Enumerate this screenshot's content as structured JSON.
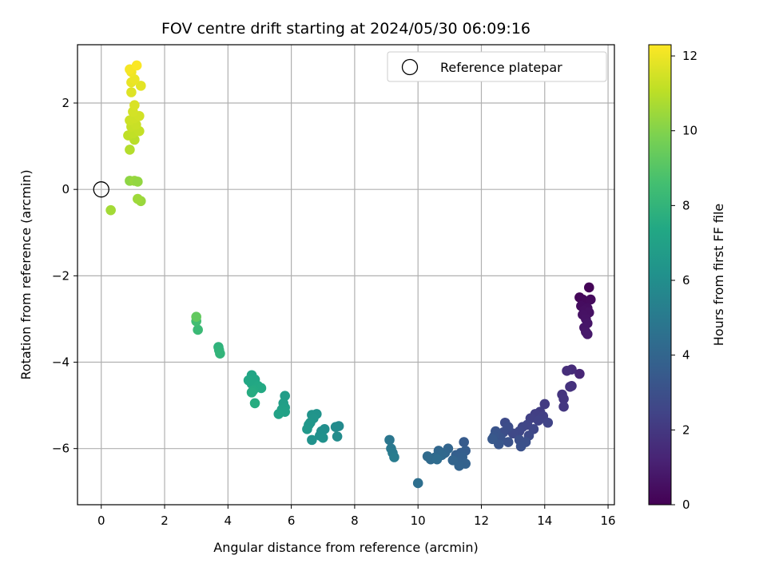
{
  "chart_data": {
    "type": "scatter",
    "title": "FOV centre drift starting at 2024/05/30 06:09:16",
    "xlabel": "Angular distance from reference (arcmin)",
    "ylabel": "Rotation from reference (arcmin)",
    "xlim": [
      -0.75,
      16.2
    ],
    "ylim": [
      -7.3,
      3.35
    ],
    "xticks": [
      0,
      2,
      4,
      6,
      8,
      10,
      12,
      14,
      16
    ],
    "xtick_labels": [
      "0",
      "2",
      "4",
      "6",
      "8",
      "10",
      "12",
      "14",
      "16"
    ],
    "yticks": [
      2,
      0,
      -2,
      -4,
      -6
    ],
    "ytick_labels": [
      "2",
      "0",
      "−2",
      "−4",
      "−6"
    ],
    "grid": true,
    "colormap": "viridis",
    "colorbar": {
      "label": "Hours from first FF file",
      "range": [
        0,
        12.3
      ],
      "ticks": [
        0,
        2,
        4,
        6,
        8,
        10,
        12
      ],
      "tick_labels": [
        "0",
        "2",
        "4",
        "6",
        "8",
        "10",
        "12"
      ]
    },
    "legend": {
      "position": "top-right",
      "entries": [
        {
          "label": "Reference platepar",
          "marker": "open-circle"
        }
      ]
    },
    "reference_point": {
      "x": 0,
      "y": 0
    },
    "points": [
      {
        "x": 15.4,
        "y": -2.27,
        "c": 0.1
      },
      {
        "x": 15.1,
        "y": -2.5,
        "c": 0.2
      },
      {
        "x": 15.2,
        "y": -2.55,
        "c": 0.25
      },
      {
        "x": 15.3,
        "y": -2.6,
        "c": 0.3
      },
      {
        "x": 15.45,
        "y": -2.55,
        "c": 0.35
      },
      {
        "x": 15.15,
        "y": -2.7,
        "c": 0.4
      },
      {
        "x": 15.35,
        "y": -2.75,
        "c": 0.45
      },
      {
        "x": 15.25,
        "y": -2.8,
        "c": 0.5
      },
      {
        "x": 15.4,
        "y": -2.85,
        "c": 0.55
      },
      {
        "x": 15.2,
        "y": -2.9,
        "c": 0.6
      },
      {
        "x": 15.3,
        "y": -3.0,
        "c": 0.65
      },
      {
        "x": 15.35,
        "y": -3.1,
        "c": 0.7
      },
      {
        "x": 15.25,
        "y": -3.2,
        "c": 0.75
      },
      {
        "x": 15.3,
        "y": -3.3,
        "c": 0.8
      },
      {
        "x": 15.35,
        "y": -3.35,
        "c": 0.85
      },
      {
        "x": 15.1,
        "y": -4.27,
        "c": 1.3
      },
      {
        "x": 14.85,
        "y": -4.17,
        "c": 1.5
      },
      {
        "x": 14.7,
        "y": -4.2,
        "c": 1.6
      },
      {
        "x": 14.85,
        "y": -4.55,
        "c": 1.7
      },
      {
        "x": 14.8,
        "y": -4.57,
        "c": 1.75
      },
      {
        "x": 14.55,
        "y": -4.75,
        "c": 1.85
      },
      {
        "x": 14.6,
        "y": -4.85,
        "c": 1.9
      },
      {
        "x": 14.6,
        "y": -5.03,
        "c": 1.95
      },
      {
        "x": 14.0,
        "y": -4.97,
        "c": 2.1
      },
      {
        "x": 13.85,
        "y": -5.15,
        "c": 2.2
      },
      {
        "x": 13.7,
        "y": -5.2,
        "c": 2.25
      },
      {
        "x": 13.95,
        "y": -5.25,
        "c": 2.3
      },
      {
        "x": 13.55,
        "y": -5.3,
        "c": 2.35
      },
      {
        "x": 13.8,
        "y": -5.35,
        "c": 2.4
      },
      {
        "x": 14.1,
        "y": -5.4,
        "c": 2.45
      },
      {
        "x": 13.45,
        "y": -5.45,
        "c": 2.5
      },
      {
        "x": 13.3,
        "y": -5.5,
        "c": 2.55
      },
      {
        "x": 13.65,
        "y": -5.55,
        "c": 2.6
      },
      {
        "x": 13.2,
        "y": -5.6,
        "c": 2.65
      },
      {
        "x": 13.0,
        "y": -5.65,
        "c": 2.7
      },
      {
        "x": 13.5,
        "y": -5.7,
        "c": 2.75
      },
      {
        "x": 12.75,
        "y": -5.4,
        "c": 2.8
      },
      {
        "x": 12.85,
        "y": -5.5,
        "c": 2.85
      },
      {
        "x": 12.7,
        "y": -5.62,
        "c": 2.9
      },
      {
        "x": 13.2,
        "y": -5.8,
        "c": 2.95
      },
      {
        "x": 13.4,
        "y": -5.85,
        "c": 3.0
      },
      {
        "x": 13.25,
        "y": -5.95,
        "c": 3.05
      },
      {
        "x": 12.85,
        "y": -5.85,
        "c": 3.1
      },
      {
        "x": 12.6,
        "y": -5.75,
        "c": 3.15
      },
      {
        "x": 12.45,
        "y": -5.6,
        "c": 3.2
      },
      {
        "x": 12.4,
        "y": -5.72,
        "c": 3.25
      },
      {
        "x": 12.55,
        "y": -5.9,
        "c": 3.3
      },
      {
        "x": 12.35,
        "y": -5.78,
        "c": 3.35
      },
      {
        "x": 11.45,
        "y": -5.85,
        "c": 3.5
      },
      {
        "x": 11.5,
        "y": -6.05,
        "c": 3.6
      },
      {
        "x": 11.35,
        "y": -6.1,
        "c": 3.65
      },
      {
        "x": 11.2,
        "y": -6.15,
        "c": 3.7
      },
      {
        "x": 11.4,
        "y": -6.2,
        "c": 3.75
      },
      {
        "x": 11.25,
        "y": -6.3,
        "c": 3.8
      },
      {
        "x": 11.5,
        "y": -6.35,
        "c": 3.85
      },
      {
        "x": 11.3,
        "y": -6.4,
        "c": 3.9
      },
      {
        "x": 11.1,
        "y": -6.27,
        "c": 3.95
      },
      {
        "x": 10.95,
        "y": -6.0,
        "c": 4.0
      },
      {
        "x": 10.85,
        "y": -6.1,
        "c": 4.05
      },
      {
        "x": 10.65,
        "y": -6.05,
        "c": 4.1
      },
      {
        "x": 10.75,
        "y": -6.15,
        "c": 4.15
      },
      {
        "x": 10.55,
        "y": -6.2,
        "c": 4.2
      },
      {
        "x": 10.4,
        "y": -6.25,
        "c": 4.25
      },
      {
        "x": 10.3,
        "y": -6.18,
        "c": 4.3
      },
      {
        "x": 10.6,
        "y": -6.25,
        "c": 4.35
      },
      {
        "x": 10.0,
        "y": -6.8,
        "c": 4.5
      },
      {
        "x": 9.1,
        "y": -5.8,
        "c": 4.8
      },
      {
        "x": 9.15,
        "y": -6.0,
        "c": 4.9
      },
      {
        "x": 9.2,
        "y": -6.1,
        "c": 5.0
      },
      {
        "x": 9.25,
        "y": -6.2,
        "c": 5.1
      },
      {
        "x": 7.5,
        "y": -5.48,
        "c": 5.8
      },
      {
        "x": 7.4,
        "y": -5.5,
        "c": 5.85
      },
      {
        "x": 7.45,
        "y": -5.72,
        "c": 5.9
      },
      {
        "x": 7.05,
        "y": -5.55,
        "c": 6.0
      },
      {
        "x": 6.95,
        "y": -5.6,
        "c": 6.05
      },
      {
        "x": 6.9,
        "y": -5.7,
        "c": 6.1
      },
      {
        "x": 7.0,
        "y": -5.75,
        "c": 6.15
      },
      {
        "x": 6.65,
        "y": -5.8,
        "c": 6.2
      },
      {
        "x": 6.8,
        "y": -5.2,
        "c": 6.25
      },
      {
        "x": 6.65,
        "y": -5.22,
        "c": 6.3
      },
      {
        "x": 6.7,
        "y": -5.3,
        "c": 6.35
      },
      {
        "x": 6.6,
        "y": -5.4,
        "c": 6.4
      },
      {
        "x": 6.55,
        "y": -5.45,
        "c": 6.45
      },
      {
        "x": 6.5,
        "y": -5.55,
        "c": 6.5
      },
      {
        "x": 5.8,
        "y": -4.78,
        "c": 6.8
      },
      {
        "x": 5.75,
        "y": -4.95,
        "c": 6.85
      },
      {
        "x": 5.8,
        "y": -5.05,
        "c": 6.9
      },
      {
        "x": 5.7,
        "y": -5.1,
        "c": 6.95
      },
      {
        "x": 5.8,
        "y": -5.15,
        "c": 7.0
      },
      {
        "x": 5.6,
        "y": -5.2,
        "c": 7.05
      },
      {
        "x": 4.75,
        "y": -4.3,
        "c": 7.2
      },
      {
        "x": 4.85,
        "y": -4.4,
        "c": 7.25
      },
      {
        "x": 4.65,
        "y": -4.42,
        "c": 7.3
      },
      {
        "x": 4.75,
        "y": -4.5,
        "c": 7.35
      },
      {
        "x": 4.95,
        "y": -4.55,
        "c": 7.4
      },
      {
        "x": 5.05,
        "y": -4.6,
        "c": 7.45
      },
      {
        "x": 4.8,
        "y": -4.65,
        "c": 7.5
      },
      {
        "x": 4.75,
        "y": -4.7,
        "c": 7.55
      },
      {
        "x": 4.85,
        "y": -4.95,
        "c": 7.6
      },
      {
        "x": 3.7,
        "y": -3.65,
        "c": 7.9
      },
      {
        "x": 3.72,
        "y": -3.72,
        "c": 7.95
      },
      {
        "x": 3.75,
        "y": -3.8,
        "c": 8.0
      },
      {
        "x": 3.05,
        "y": -3.25,
        "c": 8.3
      },
      {
        "x": 3.0,
        "y": -3.05,
        "c": 8.5
      },
      {
        "x": 3.0,
        "y": -2.95,
        "c": 9.3
      },
      {
        "x": 0.3,
        "y": -0.48,
        "c": 10.6
      },
      {
        "x": 1.25,
        "y": -0.27,
        "c": 10.4
      },
      {
        "x": 1.15,
        "y": -0.22,
        "c": 10.5
      },
      {
        "x": 0.9,
        "y": 0.2,
        "c": 10.2
      },
      {
        "x": 1.05,
        "y": 0.2,
        "c": 10.4
      },
      {
        "x": 1.15,
        "y": 0.18,
        "c": 10.3
      },
      {
        "x": 0.9,
        "y": 0.92,
        "c": 10.9
      },
      {
        "x": 1.05,
        "y": 1.15,
        "c": 11.0
      },
      {
        "x": 0.85,
        "y": 1.25,
        "c": 11.1
      },
      {
        "x": 1.0,
        "y": 1.3,
        "c": 11.15
      },
      {
        "x": 1.2,
        "y": 1.35,
        "c": 11.2
      },
      {
        "x": 0.95,
        "y": 1.45,
        "c": 11.25
      },
      {
        "x": 1.1,
        "y": 1.5,
        "c": 11.3
      },
      {
        "x": 0.9,
        "y": 1.6,
        "c": 11.35
      },
      {
        "x": 1.05,
        "y": 1.65,
        "c": 11.4
      },
      {
        "x": 1.2,
        "y": 1.7,
        "c": 11.45
      },
      {
        "x": 1.0,
        "y": 1.8,
        "c": 11.5
      },
      {
        "x": 1.05,
        "y": 1.95,
        "c": 11.6
      },
      {
        "x": 0.95,
        "y": 2.25,
        "c": 11.7
      },
      {
        "x": 1.25,
        "y": 2.4,
        "c": 11.8
      },
      {
        "x": 0.95,
        "y": 2.48,
        "c": 11.9
      },
      {
        "x": 1.05,
        "y": 2.55,
        "c": 11.95
      },
      {
        "x": 0.95,
        "y": 2.72,
        "c": 12.05
      },
      {
        "x": 0.9,
        "y": 2.78,
        "c": 12.15
      },
      {
        "x": 1.12,
        "y": 2.87,
        "c": 12.25
      }
    ]
  }
}
